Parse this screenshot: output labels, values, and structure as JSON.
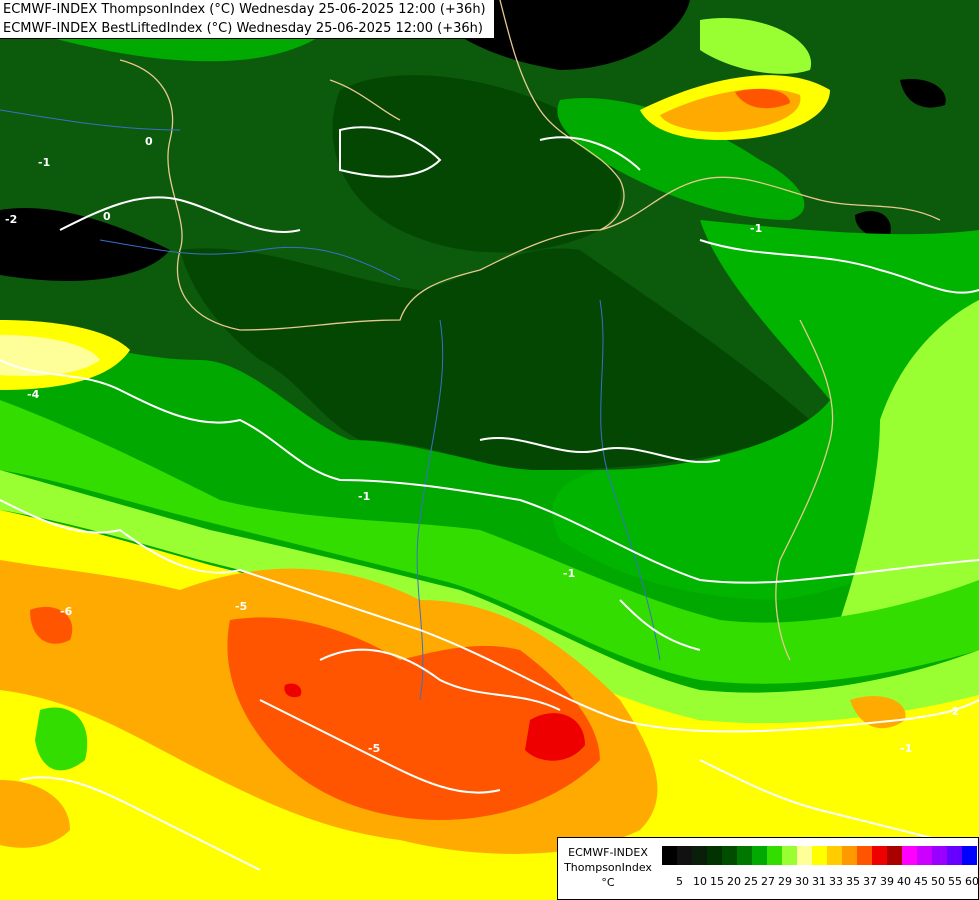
{
  "header": {
    "line1": "ECMWF-INDEX ThompsonIndex (°C) Wednesday 25-06-2025 12:00 (+36h)",
    "line2": "ECMWF-INDEX BestLiftedIndex (°C) Wednesday 25-06-2025 12:00 (+36h)"
  },
  "legend": {
    "title1": "ECMWF-INDEX",
    "title2": "ThompsonIndex",
    "unit": "°C",
    "ticks": [
      "5",
      "10",
      "15",
      "20",
      "25",
      "27",
      "29",
      "30",
      "31",
      "33",
      "35",
      "37",
      "39",
      "40",
      "45",
      "50",
      "55",
      "60"
    ],
    "colors": [
      "#000000",
      "#111111",
      "#0a1f0a",
      "#003300",
      "#004d00",
      "#007700",
      "#00aa00",
      "#33dd00",
      "#99ff33",
      "#ffff99",
      "#ffff00",
      "#ffcc00",
      "#ff9900",
      "#ff5500",
      "#ee0000",
      "#aa0000",
      "#ff00ff",
      "#cc00ff",
      "#9900ff",
      "#6600ff",
      "#0000ff"
    ]
  },
  "contour_labels": [
    "0",
    "-1",
    "-2",
    "0",
    "-1",
    "-4",
    "-1",
    "-6",
    "-5",
    "-2",
    "-1",
    "-5",
    "-1"
  ]
}
